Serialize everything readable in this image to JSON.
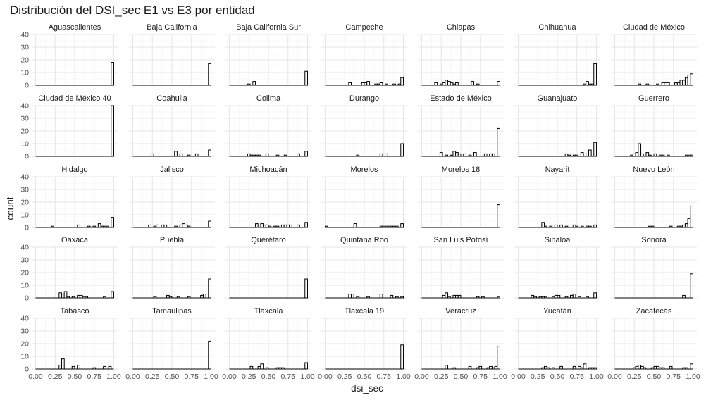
{
  "chart_data": {
    "type": "bar",
    "title": "Distribución del DSI_sec E1 vs E3 por entidad",
    "xlabel": "dsi_sec",
    "ylabel": "count",
    "xlim": [
      0,
      1
    ],
    "ylim": [
      0,
      40
    ],
    "x_ticks": [
      "0.00",
      "0.25",
      "0.50",
      "0.75",
      "1.00"
    ],
    "y_ticks": [
      "0",
      "10",
      "20",
      "30",
      "40"
    ],
    "bin_width": 0.0333,
    "grid": true,
    "bar_fill": "#ffffff",
    "bar_stroke": "#000000",
    "panels": [
      {
        "name": "Aguascalientes",
        "bins": [
          [
            0.983,
            18
          ]
        ]
      },
      {
        "name": "Baja California",
        "bins": [
          [
            0.983,
            17
          ]
        ]
      },
      {
        "name": "Baja California Sur",
        "bins": [
          [
            0.25,
            1
          ],
          [
            0.317,
            3
          ],
          [
            0.983,
            11
          ]
        ]
      },
      {
        "name": "Campeche",
        "bins": [
          [
            0.317,
            2
          ],
          [
            0.483,
            2
          ],
          [
            0.517,
            2
          ],
          [
            0.55,
            3
          ],
          [
            0.65,
            1
          ],
          [
            0.683,
            1
          ],
          [
            0.717,
            2
          ],
          [
            0.783,
            1
          ],
          [
            0.883,
            1
          ],
          [
            0.95,
            1
          ],
          [
            0.983,
            6
          ]
        ]
      },
      {
        "name": "Chiapas",
        "bins": [
          [
            0.183,
            2
          ],
          [
            0.25,
            1
          ],
          [
            0.283,
            2
          ],
          [
            0.317,
            4
          ],
          [
            0.35,
            3
          ],
          [
            0.383,
            2
          ],
          [
            0.417,
            1
          ],
          [
            0.45,
            2
          ],
          [
            0.65,
            3
          ],
          [
            0.717,
            1
          ],
          [
            0.983,
            3
          ]
        ]
      },
      {
        "name": "Chihuahua",
        "bins": [
          [
            0.85,
            1
          ],
          [
            0.883,
            3
          ],
          [
            0.917,
            1
          ],
          [
            0.95,
            1
          ],
          [
            0.983,
            17
          ]
        ]
      },
      {
        "name": "Ciudad de México",
        "bins": [
          [
            0.317,
            1
          ],
          [
            0.417,
            1
          ],
          [
            0.55,
            1
          ],
          [
            0.617,
            2
          ],
          [
            0.65,
            2
          ],
          [
            0.683,
            2
          ],
          [
            0.783,
            2
          ],
          [
            0.817,
            2
          ],
          [
            0.85,
            4
          ],
          [
            0.883,
            4
          ],
          [
            0.917,
            6
          ],
          [
            0.95,
            8
          ],
          [
            0.983,
            9
          ]
        ]
      },
      {
        "name": "Ciudad de México 40",
        "bins": [
          [
            0.983,
            40
          ]
        ]
      },
      {
        "name": "Coahuila",
        "bins": [
          [
            0.25,
            2
          ],
          [
            0.55,
            4
          ],
          [
            0.617,
            2
          ],
          [
            0.717,
            1
          ],
          [
            0.817,
            2
          ],
          [
            0.983,
            5
          ]
        ]
      },
      {
        "name": "Colima",
        "bins": [
          [
            0.25,
            2
          ],
          [
            0.283,
            1
          ],
          [
            0.317,
            1
          ],
          [
            0.35,
            1
          ],
          [
            0.383,
            1
          ],
          [
            0.483,
            2
          ],
          [
            0.617,
            1
          ],
          [
            0.717,
            1
          ],
          [
            0.883,
            2
          ],
          [
            0.983,
            4
          ]
        ]
      },
      {
        "name": "Durango",
        "bins": [
          [
            0.417,
            1
          ],
          [
            0.717,
            2
          ],
          [
            0.783,
            2
          ],
          [
            0.983,
            10
          ]
        ]
      },
      {
        "name": "Estado de México",
        "bins": [
          [
            0.25,
            3
          ],
          [
            0.317,
            1
          ],
          [
            0.383,
            1
          ],
          [
            0.417,
            4
          ],
          [
            0.45,
            3
          ],
          [
            0.483,
            2
          ],
          [
            0.55,
            2
          ],
          [
            0.617,
            1
          ],
          [
            0.683,
            3
          ],
          [
            0.817,
            2
          ],
          [
            0.883,
            2
          ],
          [
            0.917,
            2
          ],
          [
            0.983,
            22
          ]
        ]
      },
      {
        "name": "Guanajuato",
        "bins": [
          [
            0.617,
            2
          ],
          [
            0.65,
            1
          ],
          [
            0.717,
            1
          ],
          [
            0.75,
            1
          ],
          [
            0.817,
            3
          ],
          [
            0.883,
            2
          ],
          [
            0.917,
            5
          ],
          [
            0.983,
            11
          ]
        ]
      },
      {
        "name": "Guerrero",
        "bins": [
          [
            0.217,
            1
          ],
          [
            0.25,
            2
          ],
          [
            0.283,
            3
          ],
          [
            0.317,
            10
          ],
          [
            0.35,
            2
          ],
          [
            0.417,
            3
          ],
          [
            0.45,
            1
          ],
          [
            0.517,
            2
          ],
          [
            0.583,
            1
          ],
          [
            0.617,
            1
          ],
          [
            0.683,
            1
          ],
          [
            0.917,
            1
          ],
          [
            0.95,
            1
          ],
          [
            0.983,
            1
          ]
        ]
      },
      {
        "name": "Hidalgo",
        "bins": [
          [
            0.217,
            1
          ],
          [
            0.55,
            2
          ],
          [
            0.683,
            1
          ],
          [
            0.75,
            1
          ],
          [
            0.817,
            3
          ],
          [
            0.85,
            1
          ],
          [
            0.883,
            1
          ],
          [
            0.917,
            1
          ],
          [
            0.983,
            8
          ]
        ]
      },
      {
        "name": "Jalisco",
        "bins": [
          [
            0.217,
            2
          ],
          [
            0.283,
            1
          ],
          [
            0.317,
            2
          ],
          [
            0.383,
            2
          ],
          [
            0.417,
            2
          ],
          [
            0.55,
            1
          ],
          [
            0.617,
            2
          ],
          [
            0.65,
            3
          ],
          [
            0.683,
            2
          ],
          [
            0.717,
            1
          ],
          [
            0.983,
            5
          ]
        ]
      },
      {
        "name": "Michoacán",
        "bins": [
          [
            0.35,
            3
          ],
          [
            0.417,
            3
          ],
          [
            0.45,
            2
          ],
          [
            0.483,
            2
          ],
          [
            0.517,
            1
          ],
          [
            0.583,
            1
          ],
          [
            0.617,
            1
          ],
          [
            0.683,
            2
          ],
          [
            0.717,
            2
          ],
          [
            0.75,
            2
          ],
          [
            0.783,
            2
          ],
          [
            0.883,
            2
          ],
          [
            0.983,
            4
          ]
        ]
      },
      {
        "name": "Morelos",
        "bins": [
          [
            0.017,
            1
          ],
          [
            0.383,
            3
          ],
          [
            0.717,
            1
          ],
          [
            0.75,
            1
          ],
          [
            0.783,
            1
          ],
          [
            0.817,
            1
          ],
          [
            0.85,
            1
          ],
          [
            0.883,
            1
          ],
          [
            0.917,
            1
          ],
          [
            0.983,
            3
          ]
        ]
      },
      {
        "name": "Morelos 18",
        "bins": [
          [
            0.983,
            18
          ]
        ]
      },
      {
        "name": "Nayarit",
        "bins": [
          [
            0.317,
            4
          ],
          [
            0.35,
            1
          ],
          [
            0.417,
            1
          ],
          [
            0.483,
            2
          ],
          [
            0.55,
            2
          ],
          [
            0.617,
            1
          ],
          [
            0.717,
            2
          ],
          [
            0.75,
            1
          ],
          [
            0.817,
            1
          ],
          [
            0.883,
            1
          ],
          [
            0.917,
            1
          ],
          [
            0.983,
            2
          ]
        ]
      },
      {
        "name": "Nuevo León",
        "bins": [
          [
            0.45,
            1
          ],
          [
            0.483,
            1
          ],
          [
            0.717,
            1
          ],
          [
            0.817,
            1
          ],
          [
            0.85,
            1
          ],
          [
            0.883,
            2
          ],
          [
            0.917,
            3
          ],
          [
            0.95,
            7
          ],
          [
            0.983,
            17
          ]
        ]
      },
      {
        "name": "Oaxaca",
        "bins": [
          [
            0.317,
            4
          ],
          [
            0.35,
            3
          ],
          [
            0.383,
            5
          ],
          [
            0.417,
            1
          ],
          [
            0.483,
            1
          ],
          [
            0.55,
            2
          ],
          [
            0.583,
            2
          ],
          [
            0.617,
            1
          ],
          [
            0.65,
            1
          ],
          [
            0.883,
            1
          ],
          [
            0.983,
            5
          ]
        ]
      },
      {
        "name": "Puebla",
        "bins": [
          [
            0.283,
            1
          ],
          [
            0.45,
            2
          ],
          [
            0.483,
            1
          ],
          [
            0.583,
            1
          ],
          [
            0.717,
            1
          ],
          [
            0.883,
            2
          ],
          [
            0.917,
            3
          ],
          [
            0.983,
            15
          ]
        ]
      },
      {
        "name": "Querétaro",
        "bins": [
          [
            0.983,
            15
          ]
        ]
      },
      {
        "name": "Quintana Roo",
        "bins": [
          [
            0.317,
            3
          ],
          [
            0.35,
            3
          ],
          [
            0.417,
            1
          ],
          [
            0.55,
            1
          ],
          [
            0.717,
            3
          ],
          [
            0.85,
            2
          ],
          [
            0.917,
            1
          ],
          [
            0.983,
            1
          ]
        ]
      },
      {
        "name": "San Luis Potosí",
        "bins": [
          [
            0.283,
            2
          ],
          [
            0.317,
            4
          ],
          [
            0.35,
            1
          ],
          [
            0.417,
            2
          ],
          [
            0.45,
            2
          ],
          [
            0.483,
            2
          ],
          [
            0.717,
            1
          ],
          [
            0.783,
            1
          ],
          [
            0.983,
            1
          ]
        ]
      },
      {
        "name": "Sinaloa",
        "bins": [
          [
            0.183,
            2
          ],
          [
            0.217,
            1
          ],
          [
            0.283,
            1
          ],
          [
            0.317,
            1
          ],
          [
            0.35,
            1
          ],
          [
            0.45,
            1
          ],
          [
            0.483,
            2
          ],
          [
            0.517,
            2
          ],
          [
            0.617,
            1
          ],
          [
            0.683,
            2
          ],
          [
            0.717,
            3
          ],
          [
            0.783,
            1
          ],
          [
            0.883,
            1
          ],
          [
            0.983,
            4
          ]
        ]
      },
      {
        "name": "Sonora",
        "bins": [
          [
            0.883,
            2
          ],
          [
            0.983,
            19
          ]
        ]
      },
      {
        "name": "Tabasco",
        "bins": [
          [
            0.317,
            3
          ],
          [
            0.35,
            8
          ],
          [
            0.483,
            2
          ],
          [
            0.55,
            3
          ],
          [
            0.75,
            1
          ],
          [
            0.883,
            2
          ],
          [
            0.95,
            2
          ]
        ]
      },
      {
        "name": "Tamaulipas",
        "bins": [
          [
            0.983,
            22
          ]
        ]
      },
      {
        "name": "Tlaxcala",
        "bins": [
          [
            0.283,
            2
          ],
          [
            0.383,
            2
          ],
          [
            0.417,
            4
          ],
          [
            0.483,
            1
          ],
          [
            0.617,
            1
          ],
          [
            0.65,
            1
          ],
          [
            0.683,
            1
          ],
          [
            0.983,
            5
          ]
        ]
      },
      {
        "name": "Tlaxcala 19",
        "bins": [
          [
            0.983,
            19
          ]
        ]
      },
      {
        "name": "Veracruz",
        "bins": [
          [
            0.317,
            3
          ],
          [
            0.417,
            1
          ],
          [
            0.617,
            2
          ],
          [
            0.717,
            1
          ],
          [
            0.75,
            2
          ],
          [
            0.85,
            1
          ],
          [
            0.883,
            2
          ],
          [
            0.917,
            1
          ],
          [
            0.95,
            2
          ],
          [
            0.983,
            18
          ]
        ]
      },
      {
        "name": "Yucatán",
        "bins": [
          [
            0.317,
            1
          ],
          [
            0.35,
            2
          ],
          [
            0.383,
            1
          ],
          [
            0.45,
            1
          ],
          [
            0.55,
            2
          ],
          [
            0.717,
            2
          ],
          [
            0.783,
            2
          ],
          [
            0.817,
            1
          ],
          [
            0.85,
            4
          ],
          [
            0.917,
            1
          ],
          [
            0.95,
            1
          ],
          [
            0.983,
            1
          ]
        ]
      },
      {
        "name": "Zacatecas",
        "bins": [
          [
            0.25,
            1
          ],
          [
            0.283,
            2
          ],
          [
            0.317,
            3
          ],
          [
            0.35,
            2
          ],
          [
            0.383,
            1
          ],
          [
            0.483,
            1
          ],
          [
            0.517,
            2
          ],
          [
            0.55,
            2
          ],
          [
            0.583,
            1
          ],
          [
            0.617,
            1
          ],
          [
            0.717,
            2
          ],
          [
            0.883,
            1
          ],
          [
            0.917,
            1
          ],
          [
            0.983,
            4
          ]
        ]
      }
    ]
  }
}
